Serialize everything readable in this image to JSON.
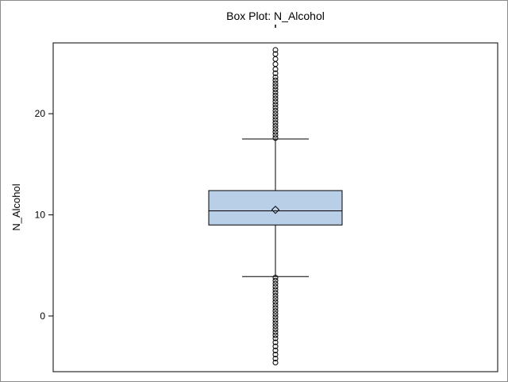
{
  "chart_data": {
    "type": "box",
    "title": "Box Plot: N_Alcohol",
    "ylabel": "N_Alcohol",
    "xlabel": "",
    "ylim": [
      -5.5,
      27
    ],
    "yticks": [
      0,
      10,
      20
    ],
    "box": {
      "whisker_low": 3.9,
      "q1": 9.0,
      "median": 10.4,
      "q3": 12.4,
      "whisker_high": 17.5,
      "mean": 10.5
    },
    "outliers_high": [
      17.6,
      17.9,
      18.2,
      18.5,
      18.8,
      19.1,
      19.4,
      19.7,
      20.0,
      20.3,
      20.6,
      20.9,
      21.2,
      21.5,
      21.8,
      22.1,
      22.4,
      22.7,
      23.0,
      23.3,
      23.6,
      24.0,
      24.4,
      24.9,
      25.4,
      25.9,
      26.3
    ],
    "outliers_low": [
      3.8,
      3.5,
      3.2,
      2.9,
      2.6,
      2.3,
      2.0,
      1.7,
      1.4,
      1.1,
      0.8,
      0.5,
      0.2,
      -0.1,
      -0.4,
      -0.7,
      -1.0,
      -1.3,
      -1.6,
      -1.9,
      -2.2,
      -2.6,
      -3.0,
      -3.4,
      -3.8,
      -4.2,
      -4.6
    ],
    "colors": {
      "box_fill": "#b9cfe8",
      "box_stroke": "#000000",
      "marker": "#000000"
    }
  }
}
